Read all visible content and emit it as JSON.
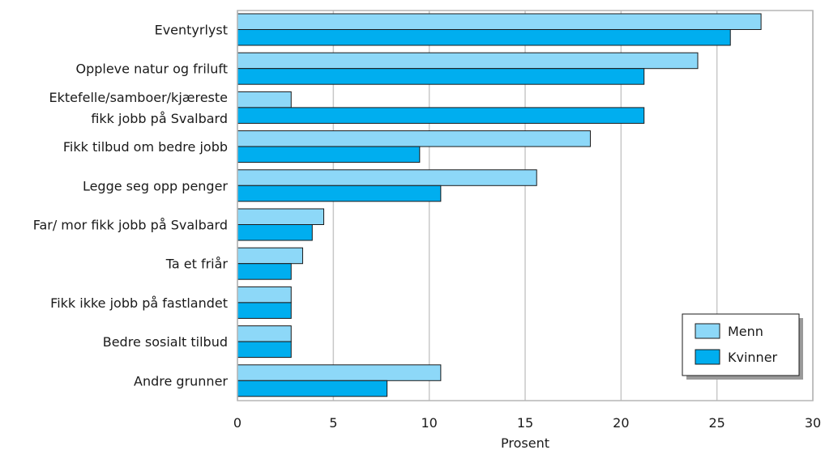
{
  "chart_data": {
    "type": "bar",
    "orientation": "horizontal",
    "categories": [
      [
        "Eventyrlyst"
      ],
      [
        "Oppleve natur og friluft"
      ],
      [
        "Ektefelle/samboer/kjæreste",
        "fikk jobb på Svalbard"
      ],
      [
        "Fikk tilbud om bedre jobb"
      ],
      [
        "Legge seg opp penger"
      ],
      [
        "Far/ mor fikk jobb på Svalbard"
      ],
      [
        "Ta et friår"
      ],
      [
        "Fikk ikke jobb på fastlandet"
      ],
      [
        "Bedre sosialt tilbud"
      ],
      [
        "Andre grunner"
      ]
    ],
    "series": [
      {
        "name": "Menn",
        "color": "#8dd8f8",
        "values": [
          27.3,
          24.0,
          2.8,
          18.4,
          15.6,
          4.5,
          3.4,
          2.8,
          2.8,
          10.6
        ]
      },
      {
        "name": "Kvinner",
        "color": "#00aeef",
        "values": [
          25.7,
          21.2,
          21.2,
          9.5,
          10.6,
          3.9,
          2.8,
          2.8,
          2.8,
          7.8
        ]
      }
    ],
    "xlabel": "Prosent",
    "ylabel": "",
    "xlim": [
      0,
      30
    ],
    "xticks": [
      0,
      5,
      10,
      15,
      20,
      25,
      30
    ],
    "grid": true,
    "legend_position": "bottom-right"
  }
}
